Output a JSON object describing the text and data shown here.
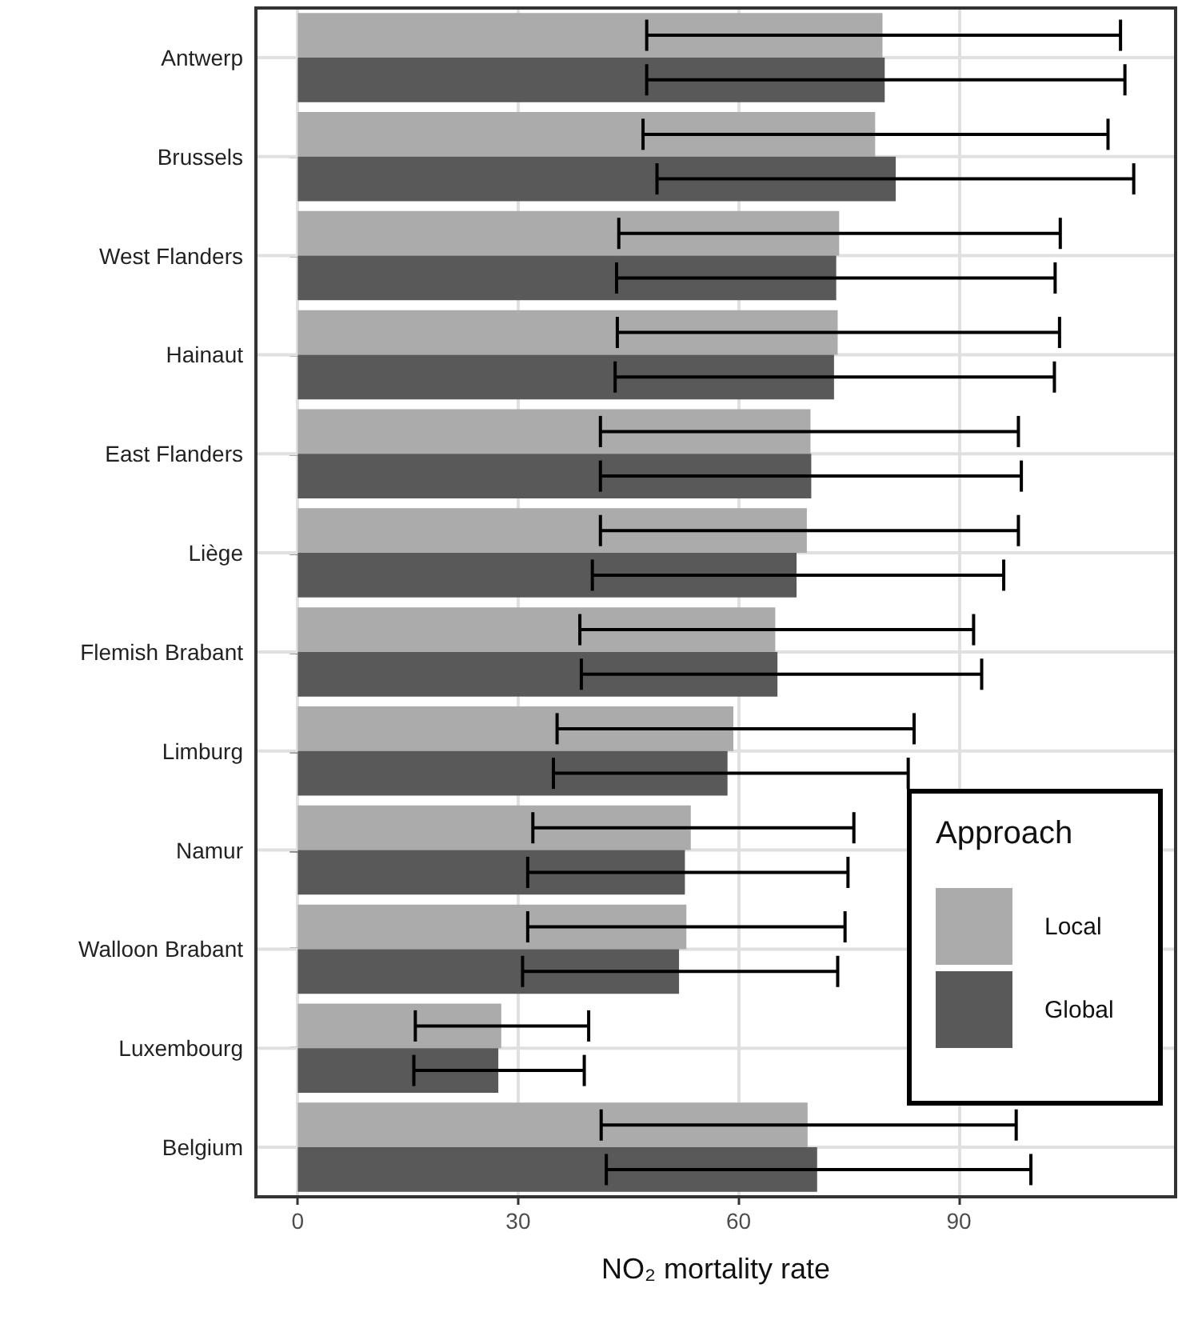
{
  "chart_data": {
    "type": "bar",
    "orientation": "horizontal",
    "xlabel": "NO₂ mortality rate",
    "legend_title": "Approach",
    "categories": [
      "Antwerp",
      "Brussels",
      "West Flanders",
      "Hainaut",
      "East Flanders",
      "Liège",
      "Flemish Brabant",
      "Limburg",
      "Namur",
      "Walloon Brabant",
      "Luxembourg",
      "Belgium"
    ],
    "series": [
      {
        "name": "Local",
        "color": "#ababab",
        "values": [
          79.6,
          78.6,
          73.7,
          73.5,
          69.8,
          69.3,
          65.0,
          59.3,
          53.5,
          52.9,
          27.7,
          69.4
        ],
        "errors": [
          [
            47.5,
            112.0
          ],
          [
            47.0,
            110.3
          ],
          [
            43.7,
            103.8
          ],
          [
            43.5,
            103.7
          ],
          [
            41.2,
            98.1
          ],
          [
            41.2,
            98.1
          ],
          [
            38.4,
            92.0
          ],
          [
            35.3,
            83.9
          ],
          [
            32.0,
            75.7
          ],
          [
            31.3,
            74.5
          ],
          [
            16.0,
            39.6
          ],
          [
            41.3,
            97.8
          ]
        ]
      },
      {
        "name": "Global",
        "color": "#595959",
        "values": [
          79.9,
          81.4,
          73.3,
          73.0,
          69.9,
          67.9,
          65.3,
          58.5,
          52.7,
          51.9,
          27.3,
          70.7
        ],
        "errors": [
          [
            47.5,
            112.6
          ],
          [
            48.9,
            113.8
          ],
          [
            43.4,
            103.1
          ],
          [
            43.2,
            103.0
          ],
          [
            41.2,
            98.5
          ],
          [
            40.1,
            96.1
          ],
          [
            38.6,
            93.1
          ],
          [
            34.8,
            83.1
          ],
          [
            31.3,
            74.9
          ],
          [
            30.6,
            73.5
          ],
          [
            15.8,
            39.0
          ],
          [
            42.0,
            99.8
          ]
        ]
      }
    ],
    "xlim": [
      -5.7,
      119.5
    ],
    "xticks": [
      0,
      30,
      60,
      90
    ],
    "grid": true,
    "legend": "bottom right"
  }
}
